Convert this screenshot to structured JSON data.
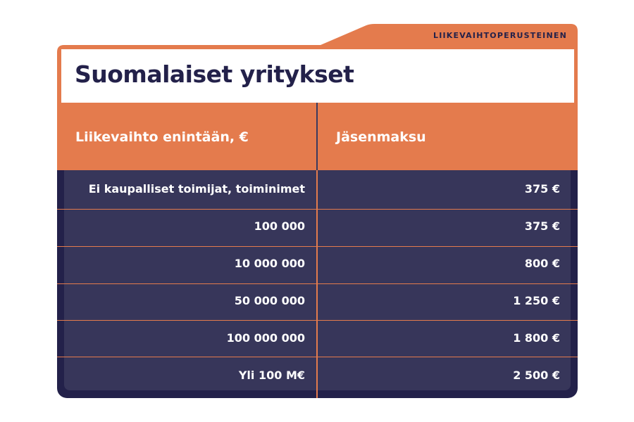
{
  "subtitle": "LIIKEVAIHTOPERUSTEINEN",
  "title": "Suomalaiset yritykset",
  "columns": [
    "Liikevaihto enintään, €",
    "Jäsenmaksu"
  ],
  "rows": [
    {
      "turnover": "Ei kaupalliset toimijat, toiminimet",
      "fee": "375 €"
    },
    {
      "turnover": "100 000",
      "fee": "375 €"
    },
    {
      "turnover": "10 000 000",
      "fee": "800 €"
    },
    {
      "turnover": "50 000 000",
      "fee": "1 250 €"
    },
    {
      "turnover": "100 000 000",
      "fee": "1 800 €"
    },
    {
      "turnover": "Yli 100 M€",
      "fee": "2 500 €"
    }
  ],
  "colors": {
    "orange": "#e47b4d",
    "navy": "#23214a",
    "row": "#37365a"
  }
}
